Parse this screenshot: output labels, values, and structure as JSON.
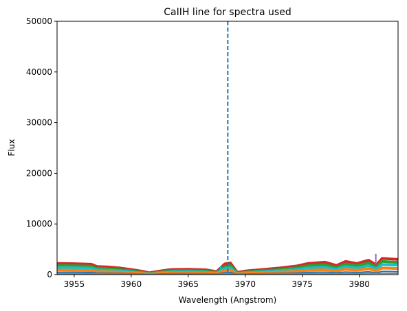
{
  "chart_data": {
    "type": "line",
    "title": "CaIIH line for spectra used",
    "xlabel": "Wavelength (Angstrom)",
    "ylabel": "Flux",
    "xlim": [
      3953.5,
      3983.4
    ],
    "ylim": [
      0,
      50000
    ],
    "x_ticks": [
      3955,
      3960,
      3965,
      3970,
      3975,
      3980
    ],
    "y_ticks": [
      0,
      10000,
      20000,
      30000,
      40000,
      50000
    ],
    "grid": false,
    "legend": "none",
    "reference_line": {
      "x": 3968.47,
      "style": "dashed",
      "color": "#1f77b4"
    },
    "series": [
      {
        "color": "#d62728",
        "points": [
          [
            3953.5,
            2200
          ],
          [
            3955,
            2150
          ],
          [
            3956.5,
            2050
          ],
          [
            3957,
            1600
          ],
          [
            3958,
            1500
          ],
          [
            3959,
            1300
          ],
          [
            3960,
            1000
          ],
          [
            3961,
            650
          ],
          [
            3961.6,
            350
          ],
          [
            3962.5,
            700
          ],
          [
            3963.5,
            1000
          ],
          [
            3965,
            1050
          ],
          [
            3966.5,
            950
          ],
          [
            3967.5,
            600
          ],
          [
            3968.2,
            2100
          ],
          [
            3968.7,
            2300
          ],
          [
            3969.3,
            450
          ],
          [
            3970,
            700
          ],
          [
            3971.5,
            1000
          ],
          [
            3973,
            1300
          ],
          [
            3974.5,
            1700
          ],
          [
            3975.5,
            2200
          ],
          [
            3977,
            2450
          ],
          [
            3978,
            1800
          ],
          [
            3978.8,
            2600
          ],
          [
            3979.8,
            2200
          ],
          [
            3980.8,
            2850
          ],
          [
            3981.5,
            1900
          ],
          [
            3982,
            3200
          ],
          [
            3983.4,
            3000
          ]
        ]
      },
      {
        "color": "#2ca02c",
        "points": [
          [
            3953.5,
            1800
          ],
          [
            3955,
            1750
          ],
          [
            3956.5,
            1650
          ],
          [
            3957,
            1250
          ],
          [
            3958,
            1150
          ],
          [
            3959,
            1000
          ],
          [
            3960,
            750
          ],
          [
            3961,
            450
          ],
          [
            3961.6,
            250
          ],
          [
            3962.5,
            500
          ],
          [
            3963.5,
            750
          ],
          [
            3965,
            800
          ],
          [
            3966.5,
            700
          ],
          [
            3967.5,
            450
          ],
          [
            3968.2,
            1600
          ],
          [
            3968.7,
            1800
          ],
          [
            3969.3,
            320
          ],
          [
            3970,
            500
          ],
          [
            3971.5,
            750
          ],
          [
            3973,
            1000
          ],
          [
            3974.5,
            1350
          ],
          [
            3975.5,
            1750
          ],
          [
            3977,
            1950
          ],
          [
            3978,
            1400
          ],
          [
            3978.8,
            2100
          ],
          [
            3979.8,
            1750
          ],
          [
            3980.8,
            2300
          ],
          [
            3981.5,
            1500
          ],
          [
            3982,
            2600
          ],
          [
            3983.4,
            2400
          ]
        ]
      },
      {
        "color": "#17becf",
        "points": [
          [
            3953.5,
            1400
          ],
          [
            3955,
            1350
          ],
          [
            3956.5,
            1250
          ],
          [
            3957,
            950
          ],
          [
            3958,
            850
          ],
          [
            3959,
            750
          ],
          [
            3960,
            550
          ],
          [
            3961,
            330
          ],
          [
            3961.6,
            180
          ],
          [
            3962.5,
            380
          ],
          [
            3963.5,
            550
          ],
          [
            3965,
            600
          ],
          [
            3966.5,
            520
          ],
          [
            3967.5,
            330
          ],
          [
            3968.2,
            1200
          ],
          [
            3968.7,
            1350
          ],
          [
            3969.3,
            230
          ],
          [
            3970,
            380
          ],
          [
            3971.5,
            560
          ],
          [
            3973,
            760
          ],
          [
            3974.5,
            1000
          ],
          [
            3975.5,
            1300
          ],
          [
            3977,
            1450
          ],
          [
            3978,
            1050
          ],
          [
            3978.8,
            1600
          ],
          [
            3979.8,
            1300
          ],
          [
            3980.8,
            1750
          ],
          [
            3981.5,
            1150
          ],
          [
            3982,
            2000
          ],
          [
            3983.4,
            1850
          ]
        ]
      },
      {
        "color": "#ff7f0e",
        "points": [
          [
            3953.5,
            900
          ],
          [
            3955,
            850
          ],
          [
            3956.5,
            800
          ],
          [
            3957,
            600
          ],
          [
            3958,
            550
          ],
          [
            3959,
            480
          ],
          [
            3960,
            350
          ],
          [
            3961,
            200
          ],
          [
            3961.6,
            110
          ],
          [
            3962.5,
            240
          ],
          [
            3963.5,
            350
          ],
          [
            3965,
            380
          ],
          [
            3966.5,
            330
          ],
          [
            3967.5,
            210
          ],
          [
            3968.2,
            780
          ],
          [
            3968.7,
            880
          ],
          [
            3969.3,
            150
          ],
          [
            3970,
            240
          ],
          [
            3971.5,
            360
          ],
          [
            3973,
            480
          ],
          [
            3974.5,
            650
          ],
          [
            3975.5,
            850
          ],
          [
            3977,
            950
          ],
          [
            3978,
            680
          ],
          [
            3978.8,
            1050
          ],
          [
            3979.8,
            850
          ],
          [
            3980.8,
            1150
          ],
          [
            3981.5,
            750
          ],
          [
            3982,
            1300
          ],
          [
            3983.4,
            1200
          ]
        ]
      },
      {
        "color": "#1f77b4",
        "points": [
          [
            3953.5,
            450
          ],
          [
            3955,
            430
          ],
          [
            3956.5,
            400
          ],
          [
            3957,
            300
          ],
          [
            3958,
            270
          ],
          [
            3959,
            240
          ],
          [
            3960,
            170
          ],
          [
            3961,
            100
          ],
          [
            3961.6,
            60
          ],
          [
            3962.5,
            120
          ],
          [
            3963.5,
            170
          ],
          [
            3965,
            190
          ],
          [
            3966.5,
            160
          ],
          [
            3967.5,
            100
          ],
          [
            3968.2,
            380
          ],
          [
            3968.7,
            430
          ],
          [
            3969.3,
            70
          ],
          [
            3970,
            120
          ],
          [
            3971.5,
            180
          ],
          [
            3973,
            240
          ],
          [
            3974.5,
            320
          ],
          [
            3975.5,
            420
          ],
          [
            3977,
            470
          ],
          [
            3978,
            340
          ],
          [
            3978.8,
            520
          ],
          [
            3979.8,
            420
          ],
          [
            3980.8,
            560
          ],
          [
            3981.5,
            370
          ],
          [
            3982,
            640
          ],
          [
            3983.4,
            600
          ]
        ]
      },
      {
        "color": "#7f7f7f",
        "points": [
          [
            3953.5,
            180
          ],
          [
            3957,
            130
          ],
          [
            3960,
            80
          ],
          [
            3961.6,
            30
          ],
          [
            3965,
            90
          ],
          [
            3967.5,
            50
          ],
          [
            3968.5,
            200
          ],
          [
            3969.3,
            40
          ],
          [
            3972,
            100
          ],
          [
            3975,
            160
          ],
          [
            3978,
            150
          ],
          [
            3981,
            230
          ],
          [
            3983.4,
            260
          ]
        ]
      }
    ],
    "spikes": [
      {
        "x": 3967.85,
        "y0": 800,
        "y1": 1700,
        "color": "#17becf"
      },
      {
        "x": 3981.45,
        "y0": 2000,
        "y1": 4100,
        "color": "#9467bd"
      }
    ]
  }
}
